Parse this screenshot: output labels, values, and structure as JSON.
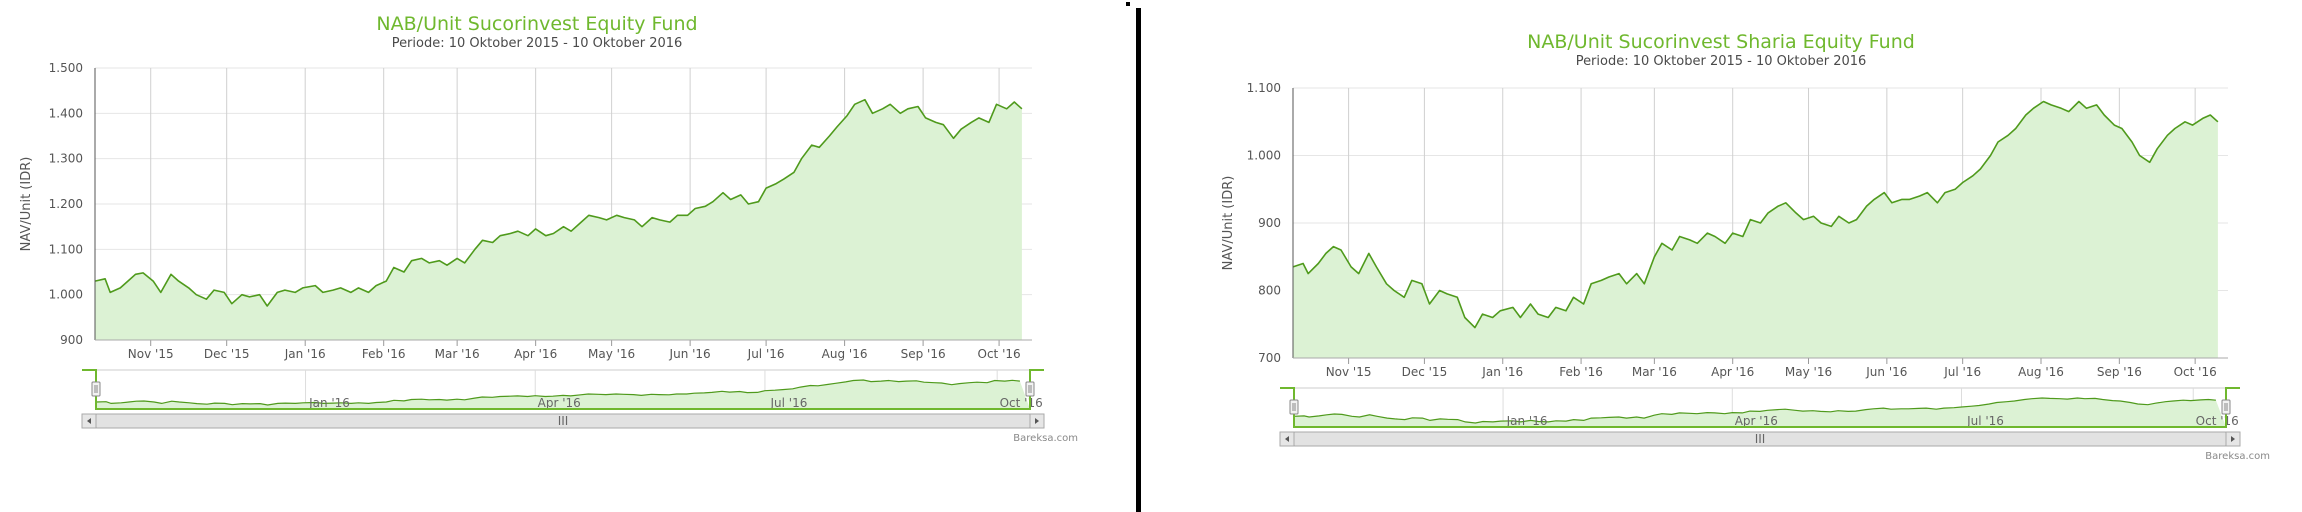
{
  "colors": {
    "line": "#4f9a1c",
    "fill": "#dcf2d4",
    "title": "#6fb82e",
    "grid": "#d0d0d0",
    "handle": "#6fb82e"
  },
  "credits": "Bareksa.com",
  "scrollbar_grip": "III",
  "chart_data": [
    {
      "type": "area",
      "title": "NAB/Unit Sucorinvest Equity Fund",
      "subtitle": "Periode: 10 Oktober 2015 - 10 Oktober 2016",
      "ylabel": "NAV/Unit (IDR)",
      "ylim": [
        900,
        1500
      ],
      "yticks": [
        "1.500",
        "1.400",
        "1.300",
        "1.200",
        "1.100",
        "1.000",
        "900"
      ],
      "ytick_values": [
        1500,
        1400,
        1300,
        1200,
        1100,
        1000,
        900
      ],
      "x_range": [
        "2015-10-10",
        "2016-10-14"
      ],
      "xticks": [
        "Nov '15",
        "Dec '15",
        "Jan '16",
        "Feb '16",
        "Mar '16",
        "Apr '16",
        "May '16",
        "Jun '16",
        "Jul '16",
        "Aug '16",
        "Sep '16",
        "Oct '16"
      ],
      "xtick_dates": [
        "2015-11-01",
        "2015-12-01",
        "2016-01-01",
        "2016-02-01",
        "2016-03-01",
        "2016-04-01",
        "2016-05-01",
        "2016-06-01",
        "2016-07-01",
        "2016-08-01",
        "2016-09-01",
        "2016-10-01"
      ],
      "navigator_labels": [
        "Jan '16",
        "Apr '16",
        "Jul '16",
        "Oct '16"
      ],
      "navigator_dates": [
        "2016-01-01",
        "2016-04-01",
        "2016-07-01",
        "2016-10-01"
      ],
      "series": [
        {
          "x": [
            "2015-10-10",
            "2015-10-14",
            "2015-10-16",
            "2015-10-20",
            "2015-10-23",
            "2015-10-26",
            "2015-10-29",
            "2015-11-02",
            "2015-11-05",
            "2015-11-09",
            "2015-11-12",
            "2015-11-16",
            "2015-11-19",
            "2015-11-23",
            "2015-11-26",
            "2015-11-30",
            "2015-12-03",
            "2015-12-07",
            "2015-12-10",
            "2015-12-14",
            "2015-12-17",
            "2015-12-21",
            "2015-12-24",
            "2015-12-28",
            "2015-12-31",
            "2016-01-05",
            "2016-01-08",
            "2016-01-12",
            "2016-01-15",
            "2016-01-19",
            "2016-01-22",
            "2016-01-26",
            "2016-01-29",
            "2016-02-02",
            "2016-02-05",
            "2016-02-09",
            "2016-02-12",
            "2016-02-16",
            "2016-02-19",
            "2016-02-23",
            "2016-02-26",
            "2016-03-01",
            "2016-03-04",
            "2016-03-08",
            "2016-03-11",
            "2016-03-15",
            "2016-03-18",
            "2016-03-22",
            "2016-03-25",
            "2016-03-29",
            "2016-04-01",
            "2016-04-05",
            "2016-04-08",
            "2016-04-12",
            "2016-04-15",
            "2016-04-19",
            "2016-04-22",
            "2016-04-26",
            "2016-04-29",
            "2016-05-03",
            "2016-05-06",
            "2016-05-10",
            "2016-05-13",
            "2016-05-17",
            "2016-05-20",
            "2016-05-24",
            "2016-05-27",
            "2016-05-31",
            "2016-06-03",
            "2016-06-07",
            "2016-06-10",
            "2016-06-14",
            "2016-06-17",
            "2016-06-21",
            "2016-06-24",
            "2016-06-28",
            "2016-07-01",
            "2016-07-05",
            "2016-07-08",
            "2016-07-12",
            "2016-07-15",
            "2016-07-19",
            "2016-07-22",
            "2016-07-26",
            "2016-07-29",
            "2016-08-02",
            "2016-08-05",
            "2016-08-09",
            "2016-08-12",
            "2016-08-16",
            "2016-08-19",
            "2016-08-23",
            "2016-08-26",
            "2016-08-30",
            "2016-09-02",
            "2016-09-06",
            "2016-09-09",
            "2016-09-13",
            "2016-09-16",
            "2016-09-20",
            "2016-09-23",
            "2016-09-27",
            "2016-09-30",
            "2016-10-04",
            "2016-10-07",
            "2016-10-10"
          ],
          "values": [
            1030,
            1035,
            1005,
            1015,
            1030,
            1045,
            1048,
            1030,
            1005,
            1045,
            1030,
            1015,
            1000,
            990,
            1010,
            1005,
            980,
            1000,
            995,
            1000,
            975,
            1005,
            1010,
            1005,
            1015,
            1020,
            1005,
            1010,
            1015,
            1005,
            1015,
            1005,
            1020,
            1030,
            1060,
            1050,
            1075,
            1080,
            1070,
            1075,
            1065,
            1080,
            1070,
            1100,
            1120,
            1115,
            1130,
            1135,
            1140,
            1130,
            1145,
            1130,
            1135,
            1150,
            1140,
            1160,
            1175,
            1170,
            1165,
            1175,
            1170,
            1165,
            1150,
            1170,
            1165,
            1160,
            1175,
            1175,
            1190,
            1195,
            1205,
            1225,
            1210,
            1220,
            1200,
            1205,
            1235,
            1245,
            1255,
            1270,
            1300,
            1330,
            1325,
            1350,
            1370,
            1395,
            1420,
            1430,
            1400,
            1410,
            1420,
            1400,
            1410,
            1415,
            1390,
            1380,
            1375,
            1345,
            1365,
            1380,
            1390,
            1380,
            1420,
            1410,
            1425,
            1410
          ]
        }
      ]
    },
    {
      "type": "area",
      "title": "NAB/Unit Sucorinvest Sharia Equity Fund",
      "subtitle": "Periode: 10 Oktober 2015 - 10 Oktober 2016",
      "ylabel": "NAV/Unit (IDR)",
      "ylim": [
        700,
        1100
      ],
      "yticks": [
        "1.100",
        "1.000",
        "900",
        "800",
        "700"
      ],
      "ytick_values": [
        1100,
        1000,
        900,
        800,
        700
      ],
      "x_range": [
        "2015-10-10",
        "2016-10-14"
      ],
      "xticks": [
        "Nov '15",
        "Dec '15",
        "Jan '16",
        "Feb '16",
        "Mar '16",
        "Apr '16",
        "May '16",
        "Jun '16",
        "Jul '16",
        "Aug '16",
        "Sep '16",
        "Oct '16"
      ],
      "xtick_dates": [
        "2015-11-01",
        "2015-12-01",
        "2016-01-01",
        "2016-02-01",
        "2016-03-01",
        "2016-04-01",
        "2016-05-01",
        "2016-06-01",
        "2016-07-01",
        "2016-08-01",
        "2016-09-01",
        "2016-10-01"
      ],
      "navigator_labels": [
        "Jan '16",
        "Apr '16",
        "Jul '16",
        "Oct '16"
      ],
      "navigator_dates": [
        "2016-01-01",
        "2016-04-01",
        "2016-07-01",
        "2016-10-01"
      ],
      "series": [
        {
          "x": [
            "2015-10-10",
            "2015-10-14",
            "2015-10-16",
            "2015-10-20",
            "2015-10-23",
            "2015-10-26",
            "2015-10-29",
            "2015-11-02",
            "2015-11-05",
            "2015-11-09",
            "2015-11-12",
            "2015-11-16",
            "2015-11-19",
            "2015-11-23",
            "2015-11-26",
            "2015-11-30",
            "2015-12-03",
            "2015-12-07",
            "2015-12-10",
            "2015-12-14",
            "2015-12-17",
            "2015-12-21",
            "2015-12-24",
            "2015-12-28",
            "2015-12-31",
            "2016-01-05",
            "2016-01-08",
            "2016-01-12",
            "2016-01-15",
            "2016-01-19",
            "2016-01-22",
            "2016-01-26",
            "2016-01-29",
            "2016-02-02",
            "2016-02-05",
            "2016-02-09",
            "2016-02-12",
            "2016-02-16",
            "2016-02-19",
            "2016-02-23",
            "2016-02-26",
            "2016-03-01",
            "2016-03-04",
            "2016-03-08",
            "2016-03-11",
            "2016-03-15",
            "2016-03-18",
            "2016-03-22",
            "2016-03-25",
            "2016-03-29",
            "2016-04-01",
            "2016-04-05",
            "2016-04-08",
            "2016-04-12",
            "2016-04-15",
            "2016-04-19",
            "2016-04-22",
            "2016-04-26",
            "2016-04-29",
            "2016-05-03",
            "2016-05-06",
            "2016-05-10",
            "2016-05-13",
            "2016-05-17",
            "2016-05-20",
            "2016-05-24",
            "2016-05-27",
            "2016-05-31",
            "2016-06-03",
            "2016-06-07",
            "2016-06-10",
            "2016-06-14",
            "2016-06-17",
            "2016-06-21",
            "2016-06-24",
            "2016-06-28",
            "2016-07-01",
            "2016-07-05",
            "2016-07-08",
            "2016-07-12",
            "2016-07-15",
            "2016-07-19",
            "2016-07-22",
            "2016-07-26",
            "2016-07-29",
            "2016-08-02",
            "2016-08-05",
            "2016-08-09",
            "2016-08-12",
            "2016-08-16",
            "2016-08-19",
            "2016-08-23",
            "2016-08-26",
            "2016-08-30",
            "2016-09-02",
            "2016-09-06",
            "2016-09-09",
            "2016-09-13",
            "2016-09-16",
            "2016-09-20",
            "2016-09-23",
            "2016-09-27",
            "2016-09-30",
            "2016-10-04",
            "2016-10-07",
            "2016-10-10"
          ],
          "values": [
            835,
            840,
            825,
            840,
            855,
            865,
            860,
            835,
            825,
            855,
            835,
            810,
            800,
            790,
            815,
            810,
            780,
            800,
            795,
            790,
            760,
            745,
            765,
            760,
            770,
            775,
            760,
            780,
            765,
            760,
            775,
            770,
            790,
            780,
            810,
            815,
            820,
            825,
            810,
            825,
            810,
            850,
            870,
            860,
            880,
            875,
            870,
            885,
            880,
            870,
            885,
            880,
            905,
            900,
            915,
            925,
            930,
            915,
            905,
            910,
            900,
            895,
            910,
            900,
            905,
            925,
            935,
            945,
            930,
            935,
            935,
            940,
            945,
            930,
            945,
            950,
            960,
            970,
            980,
            1000,
            1020,
            1030,
            1040,
            1060,
            1070,
            1080,
            1075,
            1070,
            1065,
            1080,
            1070,
            1075,
            1060,
            1045,
            1040,
            1020,
            1000,
            990,
            1010,
            1030,
            1040,
            1050,
            1045,
            1055,
            1060,
            1050
          ]
        }
      ]
    }
  ]
}
